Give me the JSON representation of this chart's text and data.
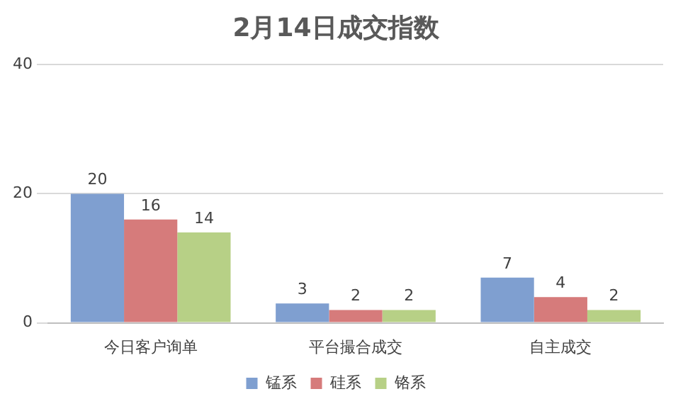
{
  "chart_data": {
    "type": "bar",
    "title": "2月14日成交指数",
    "categories": [
      "今日客户询单",
      "平台撮合成交",
      "自主成交"
    ],
    "series": [
      {
        "name": "锰系",
        "color": "#7f9fd0",
        "values": [
          20,
          3,
          7
        ]
      },
      {
        "name": "硅系",
        "color": "#d67b7b",
        "values": [
          16,
          2,
          4
        ]
      },
      {
        "name": "铬系",
        "color": "#b7d086",
        "values": [
          14,
          2,
          2
        ]
      }
    ],
    "ylim": [
      0,
      40
    ],
    "yticks": [
      0,
      20,
      40
    ],
    "grid": "y",
    "legend": "bottom",
    "data_labels": true
  }
}
